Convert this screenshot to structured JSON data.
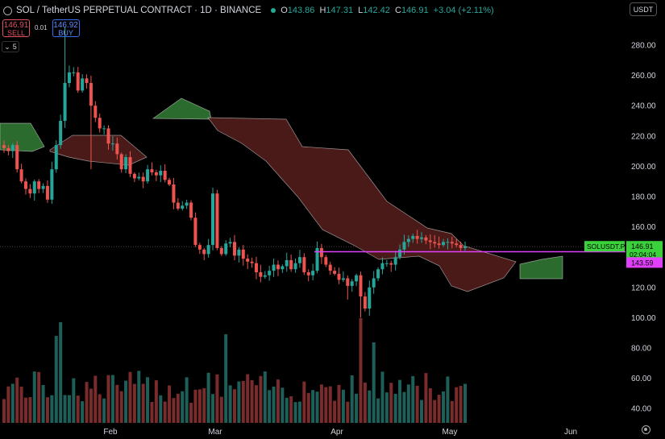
{
  "header": {
    "title": "SOL / TetherUS PERPETUAL CONTRACT · 1D · BINANCE",
    "open_label": "O",
    "open": "143.86",
    "high_label": "H",
    "high": "147.31",
    "low_label": "L",
    "low": "142.42",
    "close_label": "C",
    "close": "146.91",
    "change": "+3.04 (+2.11%)"
  },
  "trade": {
    "sell_price": "146.91",
    "sell_label": "SELL",
    "spread": "0.01",
    "buy_price": "146.92",
    "buy_label": "BUY"
  },
  "indicator_count": "5",
  "currency": "USDT",
  "colors": {
    "up": "#26a69a",
    "down": "#ef5350",
    "cloud_bear": "#4a1a18",
    "cloud_bull": "#2b6b2e",
    "marker": "#e040fb",
    "background": "#000000"
  },
  "chart_data": {
    "type": "candlestick",
    "y_ticks": [
      "280.00",
      "260.00",
      "240.00",
      "220.00",
      "200.00",
      "180.00",
      "160.00",
      "140.00",
      "120.00",
      "100.00",
      "80.00",
      "60.00",
      "40.00"
    ],
    "x_ticks": [
      "Feb",
      "Mar",
      "Apr",
      "May",
      "Jun"
    ],
    "price_tags": [
      {
        "label": "SOLUSDT.P",
        "value": "146.91",
        "countdown": "02:04:04",
        "color": "#3ad13a"
      },
      {
        "value": "143.59",
        "color": "#e040fb"
      }
    ],
    "horizontal_line_value": 143.59,
    "last_price": 146.91,
    "ylim": [
      40,
      290
    ],
    "closes": [
      212,
      210,
      214,
      198,
      190,
      185,
      182,
      190,
      185,
      187,
      178,
      198,
      214,
      230,
      255,
      262,
      262,
      250,
      258,
      255,
      240,
      232,
      225,
      225,
      215,
      215,
      208,
      198,
      206,
      195,
      192,
      193,
      190,
      198,
      196,
      194,
      197,
      191,
      188,
      176,
      172,
      174,
      176,
      166,
      148,
      145,
      142,
      148,
      182,
      146,
      142,
      149,
      150,
      141,
      145,
      139,
      137,
      136,
      130,
      127,
      128,
      131,
      135,
      132,
      134,
      138,
      132,
      136,
      140,
      130,
      128,
      131,
      146,
      140,
      135,
      131,
      129,
      125,
      126,
      121,
      124,
      128,
      114,
      106,
      120,
      126,
      132,
      136,
      136,
      135,
      140,
      145,
      150,
      152,
      154,
      152,
      153,
      151,
      150,
      149,
      148,
      150,
      150,
      149,
      148,
      146,
      147
    ]
  }
}
